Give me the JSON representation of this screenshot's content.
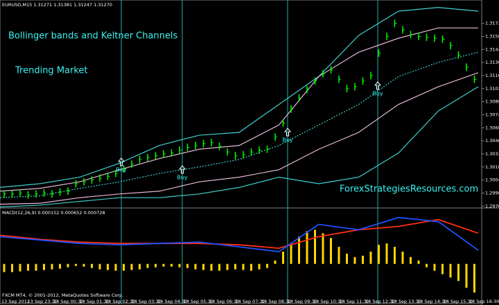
{
  "chart_data": [
    {
      "type": "ohlc",
      "title": "EURUSD,M15 1.31271 1.31381 1.31247 1.31270",
      "annotations": [
        "Bollinger bands and Keltner Channels",
        "Trending Market",
        "ForexStrategiesResources.com"
      ],
      "signals": [
        "Buy",
        "Buy",
        "Buy",
        "Buy"
      ],
      "color": "#00ff00",
      "high": [
        1.2993,
        1.2993,
        1.2994,
        1.2992,
        1.2993,
        1.2994,
        1.2993,
        1.2995,
        1.2996,
        1.3004,
        1.3006,
        1.3008,
        1.301,
        1.3012,
        1.3015,
        1.302,
        1.3025,
        1.303,
        1.3032,
        1.3034,
        1.3036,
        1.3037,
        1.304,
        1.3043,
        1.3045,
        1.3047,
        1.3048,
        1.3044,
        1.3038,
        1.3034,
        1.3035,
        1.3038,
        1.304,
        1.3041,
        1.3054,
        1.3069,
        1.3084,
        1.3096,
        1.3105,
        1.3114,
        1.3122,
        1.3126,
        1.3116,
        1.3106,
        1.3108,
        1.3114,
        1.312,
        1.3144,
        1.3162,
        1.3176,
        1.3169,
        1.3164,
        1.3162,
        1.3161,
        1.316,
        1.3159,
        1.3152,
        1.3142,
        1.3129,
        1.3116
      ],
      "low": [
        1.2985,
        1.2985,
        1.2986,
        1.2984,
        1.2985,
        1.2986,
        1.2985,
        1.2987,
        1.2988,
        1.2996,
        1.2998,
        1.3,
        1.3002,
        1.3004,
        1.3007,
        1.3012,
        1.3017,
        1.3022,
        1.3024,
        1.3026,
        1.3028,
        1.3029,
        1.3032,
        1.3035,
        1.3037,
        1.3039,
        1.304,
        1.3036,
        1.303,
        1.3026,
        1.3027,
        1.303,
        1.3032,
        1.3033,
        1.3046,
        1.3061,
        1.3076,
        1.3088,
        1.3097,
        1.3106,
        1.3114,
        1.3118,
        1.3108,
        1.3098,
        1.31,
        1.3106,
        1.3112,
        1.3136,
        1.3154,
        1.3168,
        1.3161,
        1.3156,
        1.3154,
        1.3153,
        1.3152,
        1.3151,
        1.3144,
        1.3134,
        1.3121,
        1.3108
      ],
      "series": [
        {
          "color": "#3fd0d0",
          "values": [
            1.2996,
            1.3,
            1.3007,
            1.3022,
            1.3041,
            1.3052,
            1.3055,
            1.3085,
            1.3115,
            1.3159,
            1.3185,
            1.3189,
            1.3185
          ]
        },
        {
          "color": "#e8b8d8",
          "values": [
            1.2992,
            1.2995,
            1.3002,
            1.3015,
            1.3027,
            1.3037,
            1.3041,
            1.3063,
            1.3115,
            1.3141,
            1.3156,
            1.3167,
            1.3167
          ]
        },
        {
          "color": "#3fd0d0",
          "dashed": true,
          "values": [
            1.2985,
            1.2987,
            1.2995,
            1.3002,
            1.3011,
            1.3018,
            1.3026,
            1.3041,
            1.3063,
            1.3085,
            1.3115,
            1.313,
            1.3141
          ]
        },
        {
          "color": "#e8b8d8",
          "values": [
            1.2978,
            1.2979,
            1.2985,
            1.2989,
            1.2992,
            1.3002,
            1.3007,
            1.3015,
            1.3037,
            1.3055,
            1.3085,
            1.3104,
            1.3119
          ]
        },
        {
          "color": "#3fd0d0",
          "values": [
            1.2975,
            1.2977,
            1.2981,
            1.2985,
            1.2985,
            1.2989,
            1.2996,
            1.3007,
            1.3,
            1.3007,
            1.3033,
            1.3078,
            1.3104
          ]
        }
      ],
      "ylim": [
        1.2974,
        1.3194
      ],
      "yticks": [
        {
          "value": 1.2976,
          "label": "1.29760"
        },
        {
          "value": 1.299,
          "label": "1.29900"
        },
        {
          "value": 1.3004,
          "label": "1.30040"
        },
        {
          "value": 1.3018,
          "label": "1.30180"
        },
        {
          "value": 1.3032,
          "label": "1.30320"
        },
        {
          "value": 1.3046,
          "label": "1.30460"
        },
        {
          "value": 1.306,
          "label": "1.30600"
        },
        {
          "value": 1.3074,
          "label": "1.30740"
        },
        {
          "value": 1.3088,
          "label": "1.30880"
        },
        {
          "value": 1.3102,
          "label": "1.31020"
        },
        {
          "value": 1.3116,
          "label": "1.31160"
        },
        {
          "value": 1.313,
          "label": "1.31300"
        },
        {
          "value": 1.3144,
          "label": "1.31440"
        },
        {
          "value": 1.3158,
          "label": "1.31580"
        },
        {
          "value": 1.3172,
          "label": "1.31720"
        }
      ]
    },
    {
      "type": "macd",
      "title": "MACD(12,26,9) 0.000152 0.000652 0.000728",
      "color": "#ffd700",
      "values": [
        -0.00024,
        -0.00024,
        -0.00022,
        -0.0002,
        -0.0002,
        -0.00018,
        -0.00016,
        -0.00014,
        -0.0001,
        -6e-05,
        -8e-05,
        -0.00012,
        -0.00016,
        -0.00018,
        -0.0002,
        -0.0002,
        -0.00018,
        -0.00016,
        -0.00012,
        -0.0001,
        -8e-05,
        -8e-05,
        -0.0001,
        -0.00012,
        -0.00016,
        -0.00018,
        -0.0002,
        -0.0002,
        -0.00018,
        -0.00016,
        -0.00018,
        -0.0002,
        -0.00016,
        -0.00012,
        0.0001,
        0.00036,
        0.0006,
        0.0008,
        0.00096,
        0.001,
        0.0009,
        0.00076,
        0.0005,
        0.0003,
        0.0002,
        0.00024,
        0.00036,
        0.00056,
        0.0006,
        0.0005,
        0.00036,
        0.0002,
        0.0001,
        -0.0001,
        -0.0002,
        -0.0003,
        -0.0004,
        -0.0005,
        -0.0007,
        -0.00084
      ],
      "series": [
        {
          "color": "#ff3010",
          "values": [
            0.00084,
            0.00072,
            0.00064,
            0.0006,
            0.0006,
            0.0006,
            0.00056,
            0.00046,
            0.0008,
            0.001,
            0.0011,
            0.0013,
            0.0009
          ]
        },
        {
          "color": "#2050ff",
          "values": [
            0.0008,
            0.0007,
            0.0006,
            0.00056,
            0.0006,
            0.00064,
            0.0005,
            0.00036,
            0.00116,
            0.001,
            0.00136,
            0.00124,
            0.0004
          ]
        }
      ],
      "ylim": [
        -0.0009,
        0.0016
      ],
      "x_labels": [
        "13 Sep 2012",
        "13 Sep 23:30",
        "14 Sep 00:30",
        "14 Sep 01:30",
        "14 Sep 02:30",
        "14 Sep 03:30",
        "14 Sep 04:30",
        "14 Sep 05:30",
        "14 Sep 06:30",
        "14 Sep 07:30",
        "14 Sep 08:30",
        "14 Sep 09:30",
        "14 Sep 10:30",
        "14 Sep 11:30",
        "14 Sep 12:30",
        "14 Sep 13:30",
        "14 Sep 14:30",
        "14 Sep 15:30",
        "14 Sep 16:30"
      ]
    }
  ],
  "footer": "FXCM MT4, © 2001-2012, MetaQuotes Software Corp."
}
